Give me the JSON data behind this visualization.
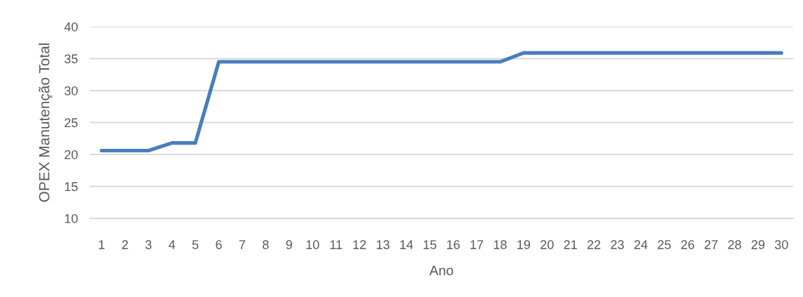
{
  "chart_data": {
    "type": "line",
    "xlabel": "Ano",
    "ylabel": "OPEX Manutenção Total",
    "categories": [
      "1",
      "2",
      "3",
      "4",
      "5",
      "6",
      "7",
      "8",
      "9",
      "10",
      "11",
      "12",
      "13",
      "14",
      "15",
      "16",
      "17",
      "18",
      "19",
      "20",
      "21",
      "22",
      "23",
      "24",
      "25",
      "26",
      "27",
      "28",
      "29",
      "30"
    ],
    "series": [
      {
        "color": "#4a7ebb",
        "values": [
          20.6,
          20.6,
          20.6,
          21.8,
          21.8,
          34.5,
          34.5,
          34.5,
          34.5,
          34.5,
          34.5,
          34.5,
          34.5,
          34.5,
          34.5,
          34.5,
          34.5,
          34.5,
          35.9,
          35.9,
          35.9,
          35.9,
          35.9,
          35.9,
          35.9,
          35.9,
          35.9,
          35.9,
          35.9,
          35.9
        ]
      }
    ],
    "ylim": [
      10,
      40
    ],
    "yticks": [
      10,
      15,
      20,
      25,
      30,
      35,
      40
    ],
    "grid": "y",
    "marker": "none",
    "line_style": "solid"
  }
}
